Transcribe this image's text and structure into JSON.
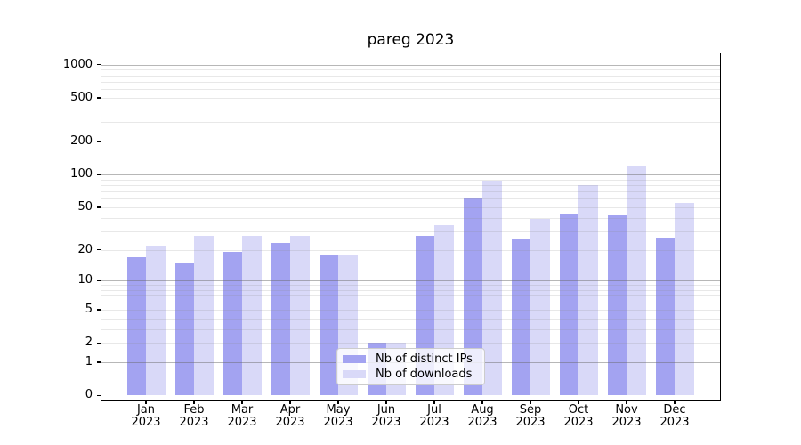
{
  "chart_data": {
    "type": "bar",
    "title": "pareg 2023",
    "year": "2023",
    "categories": [
      "Jan",
      "Feb",
      "Mar",
      "Apr",
      "May",
      "Jun",
      "Jul",
      "Aug",
      "Sep",
      "Oct",
      "Nov",
      "Dec"
    ],
    "series": [
      {
        "name": "Nb of distinct IPs",
        "color": "#a3a3f1",
        "values": [
          17,
          15,
          19,
          23,
          18,
          2,
          27,
          60,
          25,
          43,
          42,
          26
        ]
      },
      {
        "name": "Nb of downloads",
        "color": "#d9d9f8",
        "values": [
          22,
          27,
          27,
          27,
          18,
          2,
          34,
          87,
          39,
          80,
          120,
          55
        ]
      }
    ],
    "yscale": "log10(value+1)",
    "ylim": [
      -0.1,
      1290
    ],
    "yticks": [
      1000,
      500,
      200,
      100,
      50,
      20,
      10,
      5,
      2,
      1,
      0
    ],
    "grid": {
      "major": [
        1,
        10,
        100,
        1000
      ],
      "minor": [
        2,
        3,
        4,
        5,
        6,
        7,
        8,
        9,
        20,
        30,
        40,
        50,
        60,
        70,
        80,
        90,
        200,
        300,
        400,
        500,
        600,
        700,
        800,
        900
      ]
    },
    "legend_position": "bottom-center",
    "background": "#ffffff"
  }
}
